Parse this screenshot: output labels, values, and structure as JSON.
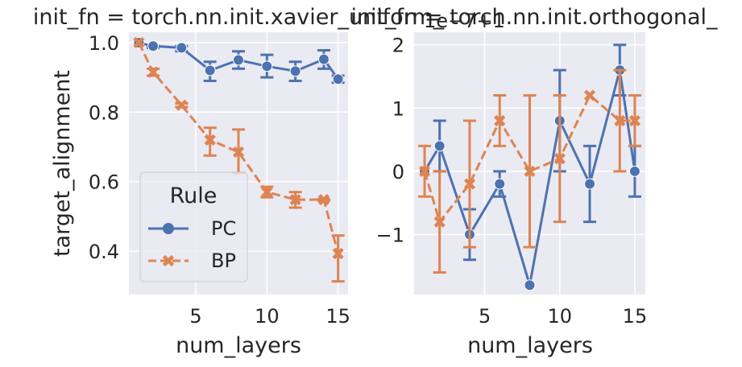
{
  "colors": {
    "pc": "#4c72b0",
    "bp": "#dd8452",
    "panel_bg": "#eaeaf2",
    "grid": "#ffffff"
  },
  "chart_data": [
    {
      "type": "line",
      "title": "init_fn = torch.nn.init.xavier_uniform_",
      "xlabel": "num_layers",
      "ylabel": "target_alignment",
      "xlim": [
        0.3,
        15.7
      ],
      "ylim": [
        0.275,
        1.03
      ],
      "xticks": [
        5,
        10,
        15
      ],
      "xtick_labels": [
        "5",
        "10",
        "15"
      ],
      "yticks": [
        0.4,
        0.6,
        0.8,
        1.0
      ],
      "ytick_labels": [
        "0.4",
        "0.6",
        "0.8",
        "1.0"
      ],
      "grid": true,
      "legend": {
        "title": "Rule",
        "placement": "lower-left"
      },
      "series": [
        {
          "name": "PC",
          "style": "solid",
          "marker": "circle",
          "x": [
            1,
            2,
            4,
            6,
            8,
            10,
            12,
            14,
            15
          ],
          "y": [
            1.0,
            0.99,
            0.985,
            0.92,
            0.95,
            0.932,
            0.918,
            0.952,
            0.895
          ],
          "err_low": [
            1.0,
            0.985,
            0.975,
            0.89,
            0.925,
            0.9,
            0.89,
            0.925,
            0.885
          ],
          "err_high": [
            1.0,
            0.99,
            0.99,
            0.945,
            0.975,
            0.965,
            0.945,
            0.978,
            0.905
          ]
        },
        {
          "name": "BP",
          "style": "dashed",
          "marker": "x",
          "x": [
            1,
            2,
            4,
            6,
            8,
            10,
            12,
            14,
            15
          ],
          "y": [
            1.0,
            0.915,
            0.82,
            0.72,
            0.685,
            0.57,
            0.548,
            0.548,
            0.393
          ],
          "err_low": [
            1.0,
            0.905,
            0.815,
            0.675,
            0.625,
            0.555,
            0.525,
            0.545,
            0.313
          ],
          "err_high": [
            1.0,
            0.925,
            0.825,
            0.755,
            0.75,
            0.585,
            0.57,
            0.55,
            0.445
          ]
        }
      ]
    },
    {
      "type": "line",
      "title": "init_fn = torch.nn.init.orthogonal_",
      "offset_text": "1e−7+1",
      "xlabel": "num_layers",
      "ylabel": "",
      "xlim": [
        0.3,
        15.7
      ],
      "ylim": [
        -1.95,
        2.2
      ],
      "xticks": [
        5,
        10,
        15
      ],
      "xtick_labels": [
        "5",
        "10",
        "15"
      ],
      "yticks": [
        -1,
        0,
        1,
        2
      ],
      "ytick_labels": [
        "−1",
        "0",
        "1",
        "2"
      ],
      "grid": true,
      "series": [
        {
          "name": "PC",
          "style": "solid",
          "marker": "circle",
          "x": [
            1,
            2,
            4,
            6,
            8,
            10,
            12,
            14,
            15
          ],
          "y": [
            0,
            0.4,
            -1.0,
            -0.2,
            -1.8,
            0.8,
            -0.2,
            1.6,
            0
          ],
          "err_low": [
            0,
            0,
            -1.4,
            -0.4,
            -1.8,
            0,
            -0.8,
            1.2,
            -0.4
          ],
          "err_high": [
            0,
            0.8,
            -0.6,
            0,
            -1.8,
            1.6,
            0.4,
            2.0,
            0.4
          ]
        },
        {
          "name": "BP",
          "style": "dashed",
          "marker": "x",
          "x": [
            1,
            2,
            4,
            6,
            8,
            10,
            12,
            14,
            15
          ],
          "y": [
            0,
            -0.8,
            -0.2,
            0.8,
            0,
            0.2,
            1.2,
            0.8,
            0.8
          ],
          "err_low": [
            -0.4,
            -1.6,
            -1.2,
            0.4,
            -1.2,
            -0.8,
            1.2,
            0,
            0.4
          ],
          "err_high": [
            0.4,
            0,
            0.8,
            1.2,
            1.2,
            1.2,
            1.2,
            1.6,
            1.2
          ]
        }
      ]
    }
  ]
}
